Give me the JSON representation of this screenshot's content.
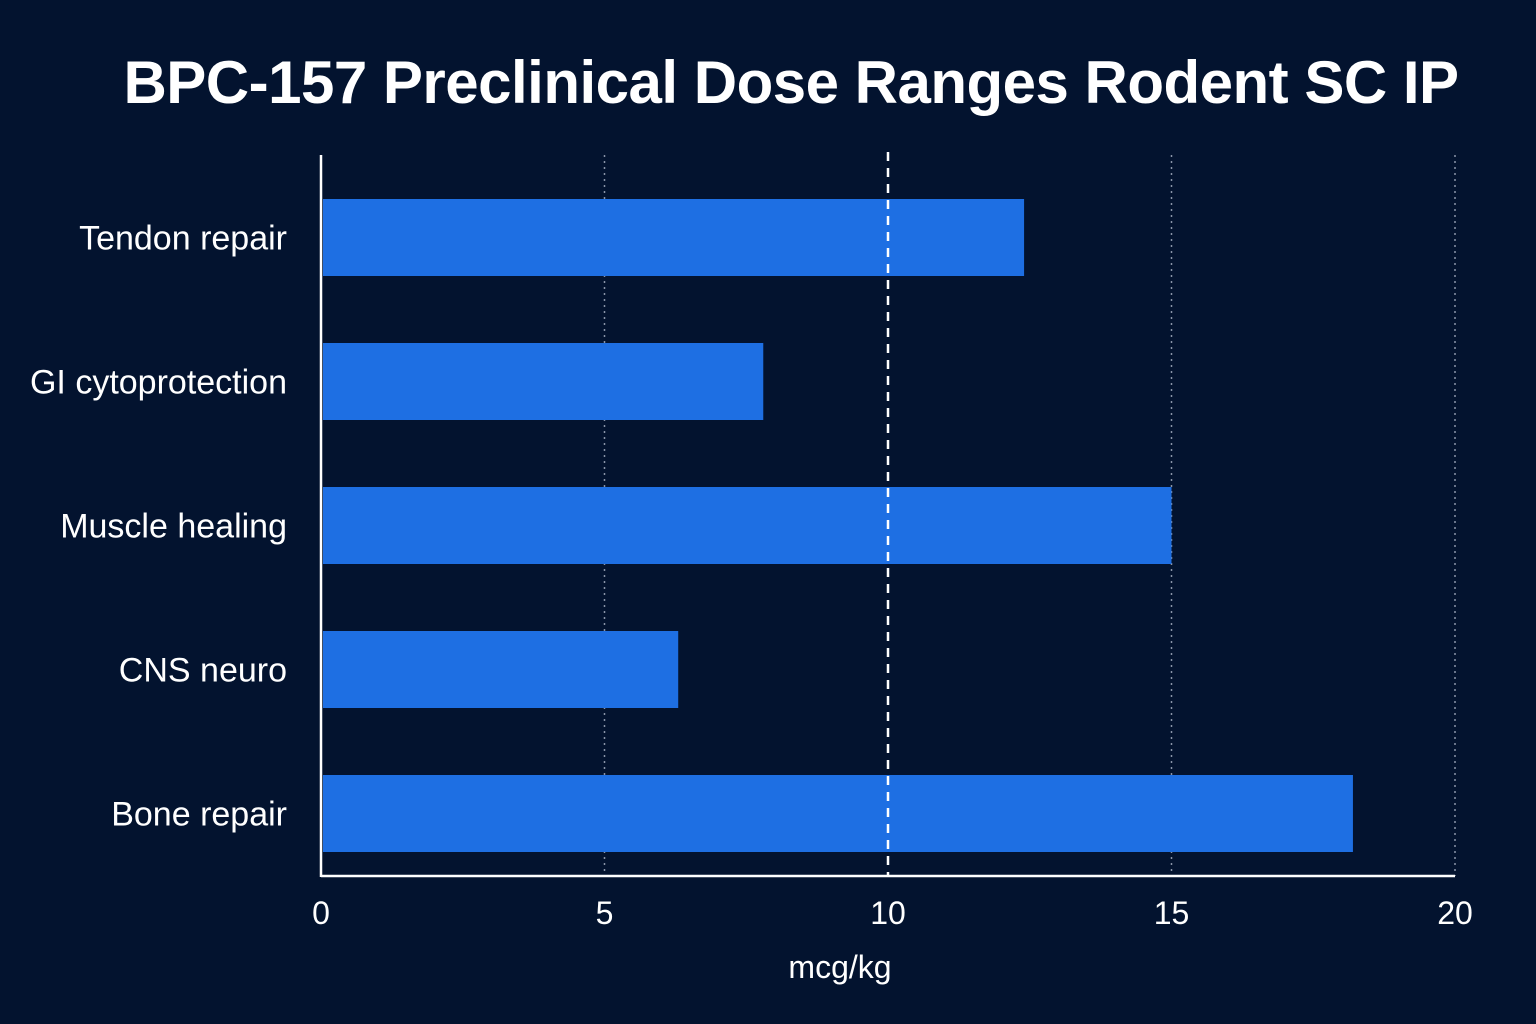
{
  "colors": {
    "background": "#03132f",
    "bar": "#1e6fe3",
    "axis": "#ffffff",
    "grid": "#8a94a8",
    "reference_line": "#ffffff",
    "text": "#ffffff"
  },
  "chart_data": {
    "type": "bar",
    "orientation": "horizontal",
    "title": "BPC-157 Preclinical Dose Ranges Rodent SC IP",
    "xlabel": "mcg/kg",
    "ylabel": "",
    "categories": [
      "Tendon repair",
      "GI cytoprotection",
      "Muscle healing",
      "CNS neuro",
      "Bone repair"
    ],
    "values": [
      12.4,
      7.8,
      15.0,
      6.3,
      18.2
    ],
    "xlim": [
      0,
      20
    ],
    "xticks": [
      0,
      5,
      10,
      15,
      20
    ],
    "xtick_labels": [
      "0",
      "5",
      "10",
      "15",
      "20"
    ],
    "grid": "vertical dotted lines at 5, 15, 20",
    "reference_line": {
      "x": 10,
      "style": "dashed"
    },
    "legend": "none"
  }
}
